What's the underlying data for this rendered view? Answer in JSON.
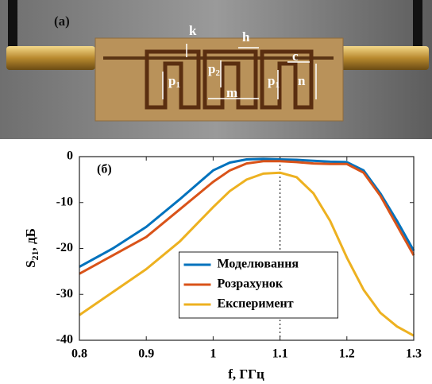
{
  "photo": {
    "label": "(a)",
    "dimensions": [
      {
        "text": "k"
      },
      {
        "text": "h"
      },
      {
        "text": "c"
      },
      {
        "text": "p",
        "sub": "1"
      },
      {
        "text": "p",
        "sub": "2"
      },
      {
        "text": "m"
      },
      {
        "text": "p",
        "sub": "1"
      },
      {
        "text": "n"
      }
    ]
  },
  "chart_data": {
    "type": "line",
    "panel_label": "(б)",
    "xlabel": "f, ГГц",
    "ylabel": {
      "main": "S",
      "sub": "21",
      "rest": ", дБ"
    },
    "x": [
      0.8,
      0.85,
      0.9,
      0.95,
      1.0,
      1.025,
      1.05,
      1.075,
      1.1,
      1.125,
      1.15,
      1.175,
      1.2,
      1.225,
      1.25,
      1.275,
      1.3
    ],
    "series": [
      {
        "name": "Моделювання",
        "color": "#0072bd",
        "values": [
          -24,
          -20,
          -15.3,
          -9.3,
          -3,
          -1.3,
          -0.6,
          -0.5,
          -0.6,
          -0.7,
          -0.9,
          -1.1,
          -1.2,
          -3,
          -8,
          -14,
          -20.5
        ]
      },
      {
        "name": "Розрахунок",
        "color": "#d95319",
        "values": [
          -25.5,
          -21.5,
          -17.5,
          -11.5,
          -5.5,
          -3,
          -1.5,
          -1,
          -1,
          -1.2,
          -1.5,
          -1.6,
          -1.6,
          -3.5,
          -8.5,
          -15,
          -21.5
        ]
      },
      {
        "name": "Експеримент",
        "color": "#edb120",
        "values": [
          -34.5,
          -29.5,
          -24.5,
          -18.5,
          -11,
          -7.5,
          -5,
          -3.7,
          -3.5,
          -4.5,
          -8,
          -14,
          -22,
          -29,
          -34,
          -37,
          -39
        ]
      }
    ],
    "xlim": [
      0.8,
      1.3
    ],
    "ylim": [
      -40,
      0
    ],
    "xticks": [
      0.8,
      0.9,
      1,
      1.1,
      1.2,
      1.3
    ],
    "yticks": [
      0,
      -10,
      -20,
      -30,
      -40
    ],
    "vline": 1.1,
    "legend": "lower center"
  }
}
